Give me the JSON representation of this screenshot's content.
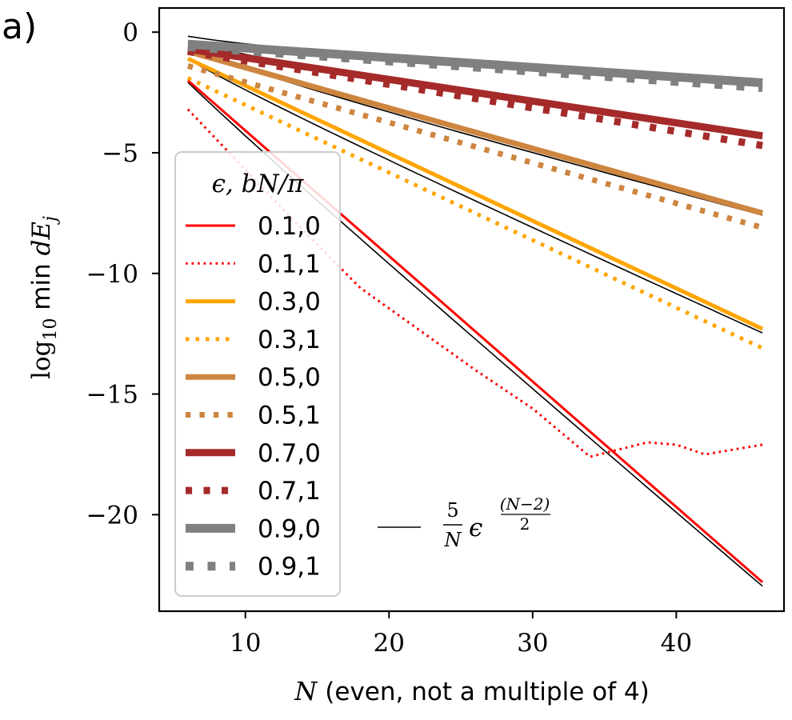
{
  "panel_label": "a)",
  "chart_data": {
    "type": "line",
    "title": "",
    "xlabel_var": "N",
    "xlabel_text": "(even, not a multiple of 4)",
    "ylabel_text": "log",
    "ylabel_sub": "10",
    "ylabel_mid": " min ",
    "ylabel_var": "dE",
    "ylabel_var_sub": "j",
    "xlim": [
      4.0,
      47.5
    ],
    "ylim": [
      -24.0,
      1.0
    ],
    "xticks": [
      10,
      20,
      30,
      40
    ],
    "xtick_labels": [
      "10",
      "20",
      "30",
      "40"
    ],
    "yticks": [
      0,
      -5,
      -10,
      -15,
      -20
    ],
    "ytick_labels": [
      "0",
      "−5",
      "−10",
      "−15",
      "−20"
    ],
    "legend_title": "ϵ, bN/π",
    "legend_location": "lower-left",
    "series": [
      {
        "name": "0.1,0",
        "color": "#ff0000",
        "style": "solid",
        "width": 3,
        "x": [
          6,
          46
        ],
        "y": [
          -2.0,
          -22.8
        ]
      },
      {
        "name": "0.1,1",
        "color": "#ff0000",
        "style": "dotted",
        "width": 3,
        "x": [
          6,
          10,
          14,
          18,
          22,
          26,
          30,
          32,
          34,
          36,
          38,
          40,
          42,
          44,
          46
        ],
        "y": [
          -3.2,
          -5.7,
          -8.2,
          -10.6,
          -12.3,
          -14.0,
          -15.6,
          -16.6,
          -17.6,
          -17.3,
          -17.0,
          -17.1,
          -17.5,
          -17.3,
          -17.1
        ]
      },
      {
        "name": "0.3,0",
        "color": "#ffa500",
        "style": "solid",
        "width": 5,
        "x": [
          6,
          46
        ],
        "y": [
          -1.1,
          -12.3
        ]
      },
      {
        "name": "0.3,1",
        "color": "#ffa500",
        "style": "dotted",
        "width": 5,
        "x": [
          6,
          46
        ],
        "y": [
          -1.9,
          -13.1
        ]
      },
      {
        "name": "0.5,0",
        "color": "#cd853f",
        "style": "solid",
        "width": 7,
        "x": [
          6,
          46
        ],
        "y": [
          -0.8,
          -7.5
        ]
      },
      {
        "name": "0.5,1",
        "color": "#cd853f",
        "style": "dotted",
        "width": 7,
        "x": [
          6,
          46
        ],
        "y": [
          -1.4,
          -8.1
        ]
      },
      {
        "name": "0.7,0",
        "color": "#a52a2a",
        "style": "solid",
        "width": 9,
        "x": [
          6,
          46
        ],
        "y": [
          -0.7,
          -4.3
        ]
      },
      {
        "name": "0.7,1",
        "color": "#a52a2a",
        "style": "dotted",
        "width": 9,
        "x": [
          6,
          46
        ],
        "y": [
          -0.8,
          -4.7
        ]
      },
      {
        "name": "0.9,0",
        "color": "#808080",
        "style": "solid",
        "width": 11,
        "x": [
          6,
          46
        ],
        "y": [
          -0.5,
          -2.1
        ]
      },
      {
        "name": "0.9,1",
        "color": "#808080",
        "style": "dotted",
        "width": 11,
        "x": [
          6,
          46
        ],
        "y": [
          -0.6,
          -2.3
        ]
      }
    ],
    "reference": {
      "label_num": "5",
      "label_den": "N",
      "label_base": "ϵ",
      "label_exp_num": "(N−2)",
      "label_exp_den": "2",
      "color": "#000000",
      "eps": [
        0.1,
        0.3,
        0.5,
        0.7,
        0.9
      ],
      "x_range": [
        6,
        46
      ]
    }
  }
}
